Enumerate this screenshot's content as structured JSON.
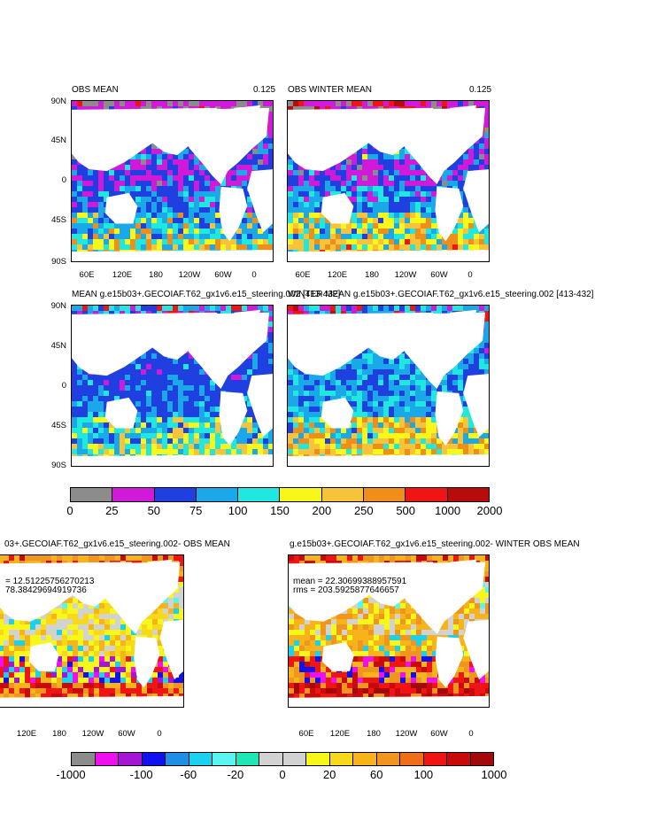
{
  "panels": [
    {
      "title_left": "OBS MEAN",
      "title_right": "0.125"
    },
    {
      "title_left": "OBS WINTER MEAN",
      "title_right": "0.125"
    },
    {
      "title_left": "MEAN g.e15b03+.GECOIAF.T62_gx1v6.e15_steering.002 [413-432]",
      "title_right": ""
    },
    {
      "title_left": "WINTER MEAN g.e15b03+.GECOIAF.T62_gx1v6.e15_steering.002 [413-432]",
      "title_right": ""
    },
    {
      "title_left": "03+.GECOIAF.T62_gx1v6.e15_steering.002- OBS MEAN",
      "title_right": "",
      "stat1": "= 12.51225756270213",
      "stat2": "78.38429694919736"
    },
    {
      "title_left": "g.e15b03+.GECOIAF.T62_gx1v6.e15_steering.002- WINTER OBS MEAN",
      "title_right": "",
      "stat1": "mean = 22.30699388957591",
      "stat2": "rms = 203.5925877646657"
    }
  ],
  "lat_ticks": [
    "90N",
    "45N",
    "0",
    "45S",
    "90S"
  ],
  "lon_ticks": [
    "60E",
    "120E",
    "180",
    "120W",
    "60W",
    "0"
  ],
  "lon_ticks_bottom_left": [
    "120E",
    "180",
    "120W",
    "60W",
    "0"
  ],
  "colorbar_top": {
    "labels": [
      "0",
      "25",
      "50",
      "75",
      "100",
      "150",
      "200",
      "250",
      "500",
      "1000",
      "2000"
    ],
    "colors": [
      "#8c8c8c",
      "#d11ad9",
      "#1f3fe0",
      "#1aa8e8",
      "#1ee8e0",
      "#f7f71a",
      "#f7c33a",
      "#ef8f1a",
      "#f01414",
      "#b80b0b"
    ]
  },
  "colorbar_bottom": {
    "labels": [
      "-1000",
      "-100",
      "-60",
      "-20",
      "0",
      "20",
      "60",
      "100",
      "1000"
    ],
    "colors": [
      "#8c8c8c",
      "#f00ff0",
      "#a515d6",
      "#1010f0",
      "#1f8fe6",
      "#1ad2f0",
      "#5af5f0",
      "#1ee6b4",
      "#d2d2d2",
      "#d2d2d2",
      "#f7f71a",
      "#f7d81a",
      "#f7b41a",
      "#f0961e",
      "#f06e1a",
      "#f01414",
      "#c80a0a",
      "#a50808"
    ]
  },
  "chart_data": [
    {
      "type": "heatmap",
      "title": "OBS MEAN",
      "value_label": "0.125",
      "ylabels": [
        "90N",
        "45N",
        "0",
        "45S",
        "90S"
      ],
      "xlabels": [
        "60E",
        "120E",
        "180",
        "120W",
        "60W",
        "0"
      ],
      "color_levels": [
        0,
        25,
        50,
        75,
        100,
        150,
        200,
        250,
        500,
        1000,
        2000
      ]
    },
    {
      "type": "heatmap",
      "title": "OBS WINTER MEAN",
      "value_label": "0.125",
      "ylabels": [
        "90N",
        "45N",
        "0",
        "45S",
        "90S"
      ],
      "xlabels": [
        "60E",
        "120E",
        "180",
        "120W",
        "60W",
        "0"
      ],
      "color_levels": [
        0,
        25,
        50,
        75,
        100,
        150,
        200,
        250,
        500,
        1000,
        2000
      ]
    },
    {
      "type": "heatmap",
      "title": "MEAN g.e15b03+.GECOIAF.T62_gx1v6.e15_steering.002 [413-432]",
      "ylabels": [
        "90N",
        "45N",
        "0",
        "45S",
        "90S"
      ],
      "color_levels": [
        0,
        25,
        50,
        75,
        100,
        150,
        200,
        250,
        500,
        1000,
        2000
      ]
    },
    {
      "type": "heatmap",
      "title": "WINTER MEAN g.e15b03+.GECOIAF.T62_gx1v6.e15_steering.002 [413-432]",
      "color_levels": [
        0,
        25,
        50,
        75,
        100,
        150,
        200,
        250,
        500,
        1000,
        2000
      ]
    },
    {
      "type": "heatmap",
      "title": "03+.GECOIAF.T62_gx1v6.e15_steering.002- OBS MEAN",
      "mean": 12.51225756270213,
      "rms": 78.38429694919736,
      "xlabels": [
        "120E",
        "180",
        "120W",
        "60W",
        "0"
      ],
      "color_levels": [
        -1000,
        -100,
        -60,
        -20,
        0,
        20,
        60,
        100,
        1000
      ]
    },
    {
      "type": "heatmap",
      "title": "g.e15b03+.GECOIAF.T62_gx1v6.e15_steering.002- WINTER OBS MEAN",
      "mean": 22.30699388957591,
      "rms": 203.5925877646657,
      "xlabels": [
        "60E",
        "120E",
        "180",
        "120W",
        "60W",
        "0"
      ],
      "color_levels": [
        -1000,
        -100,
        -60,
        -20,
        0,
        20,
        60,
        100,
        1000
      ]
    }
  ]
}
